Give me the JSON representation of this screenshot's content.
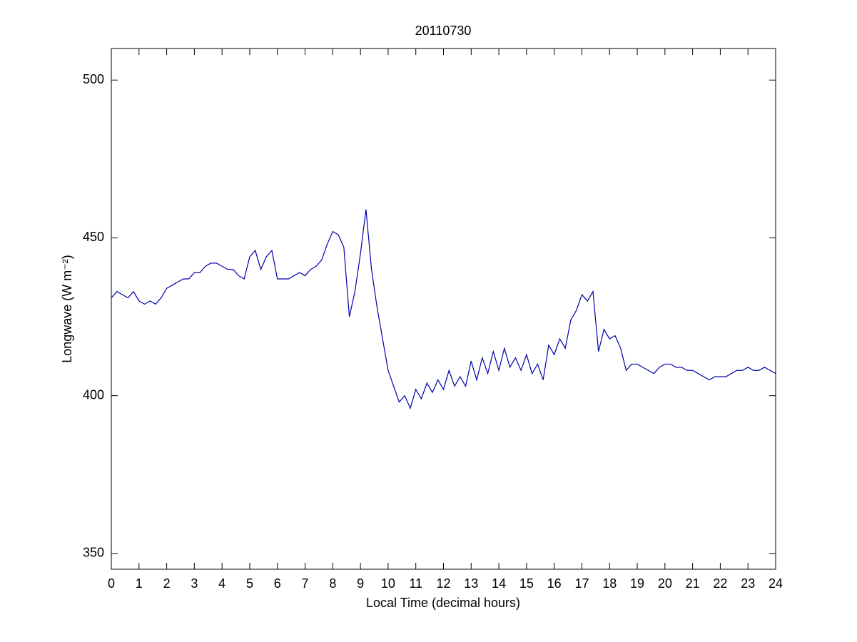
{
  "chart_data": {
    "type": "line",
    "title": "20110730",
    "xlabel": "Local Time (decimal hours)",
    "ylabel": "Longwave (W m⁻²)",
    "x": [
      0,
      0.2,
      0.4,
      0.6,
      0.8,
      1,
      1.2,
      1.4,
      1.6,
      1.8,
      2,
      2.2,
      2.4,
      2.6,
      2.8,
      3,
      3.2,
      3.4,
      3.6,
      3.8,
      4,
      4.2,
      4.4,
      4.6,
      4.8,
      5,
      5.2,
      5.4,
      5.6,
      5.8,
      6,
      6.2,
      6.4,
      6.6,
      6.8,
      7,
      7.2,
      7.4,
      7.6,
      7.8,
      8,
      8.2,
      8.4,
      8.6,
      8.8,
      9,
      9.2,
      9.4,
      9.6,
      9.8,
      10,
      10.2,
      10.4,
      10.6,
      10.8,
      11,
      11.2,
      11.4,
      11.6,
      11.8,
      12,
      12.2,
      12.4,
      12.6,
      12.8,
      13,
      13.2,
      13.4,
      13.6,
      13.8,
      14,
      14.2,
      14.4,
      14.6,
      14.8,
      15,
      15.2,
      15.4,
      15.6,
      15.8,
      16,
      16.2,
      16.4,
      16.6,
      16.8,
      17,
      17.2,
      17.4,
      17.6,
      17.8,
      18,
      18.2,
      18.4,
      18.6,
      18.8,
      19,
      19.2,
      19.4,
      19.6,
      19.8,
      20,
      20.2,
      20.4,
      20.6,
      20.8,
      21,
      21.2,
      21.4,
      21.6,
      21.8,
      22,
      22.2,
      22.4,
      22.6,
      22.8,
      23,
      23.2,
      23.4,
      23.6,
      23.8,
      24
    ],
    "series": [
      {
        "name": "Longwave",
        "color": "#0000aa",
        "values": [
          431,
          433,
          432,
          431,
          433,
          430,
          429,
          430,
          429,
          431,
          434,
          435,
          436,
          437,
          437,
          439,
          439,
          441,
          442,
          442,
          441,
          440,
          440,
          438,
          437,
          444,
          446,
          440,
          444,
          446,
          437,
          437,
          437,
          438,
          439,
          438,
          440,
          441,
          443,
          448,
          452,
          451,
          447,
          425,
          433,
          445,
          459,
          440,
          428,
          418,
          408,
          403,
          398,
          400,
          396,
          402,
          399,
          404,
          401,
          405,
          402,
          408,
          403,
          406,
          403,
          411,
          405,
          412,
          407,
          414,
          408,
          415,
          409,
          412,
          408,
          413,
          407,
          410,
          405,
          416,
          413,
          418,
          415,
          424,
          427,
          432,
          430,
          433,
          414,
          421,
          418,
          419,
          415,
          408,
          410,
          410,
          409,
          408,
          407,
          409,
          410,
          410,
          409,
          409,
          408,
          408,
          407,
          406,
          405,
          406,
          406,
          406,
          407,
          408,
          408,
          409,
          408,
          408,
          409,
          408,
          407
        ]
      }
    ],
    "xlim": [
      0,
      24
    ],
    "xticks": [
      0,
      1,
      2,
      3,
      4,
      5,
      6,
      7,
      8,
      9,
      10,
      11,
      12,
      13,
      14,
      15,
      16,
      17,
      18,
      19,
      20,
      21,
      22,
      23,
      24
    ],
    "ylim": [
      345,
      510
    ],
    "yticks": [
      350,
      400,
      450,
      500
    ]
  }
}
